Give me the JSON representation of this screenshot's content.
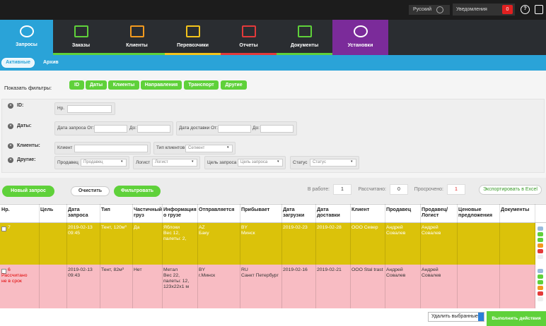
{
  "topbar": {
    "language": "Русский",
    "notifications": "Уведомления",
    "notifications_count": 0
  },
  "nav": {
    "tabs": [
      "Запросы",
      "Заказы",
      "Клиенты",
      "Перевозчики",
      "Отчеты",
      "Документы",
      "Установки"
    ]
  },
  "subnav": {
    "tabs": [
      "Активные",
      "Архив"
    ]
  },
  "filters": {
    "label": "Показать фильтры:",
    "buttons": [
      "ID",
      "Даты",
      "Клиенты",
      "Направления",
      "Транспорт",
      "Другие"
    ]
  },
  "filter_panel": {
    "id": {
      "label": "ID:",
      "field": "Нр."
    },
    "dates": {
      "label": "Даты:",
      "request_from": "Дата запроса От:",
      "request_to": "До:",
      "delivery_from": "Дата доставки От:",
      "delivery_to": "До:"
    },
    "clients": {
      "label": "Клиенты:",
      "client": "Клиент",
      "client_type": "Тип клиентов",
      "segment": "Сегмент"
    },
    "other": {
      "label": "Другие:",
      "fields": [
        {
          "label": "Продавец",
          "placeholder": "Продавец"
        },
        {
          "label": "Логист",
          "placeholder": "Логист"
        },
        {
          "label": "Цель запроса",
          "placeholder": "Цель запроса"
        },
        {
          "label": "Статус",
          "placeholder": "Статус"
        }
      ]
    }
  },
  "actions": {
    "new_request": "Новый запрос",
    "clear": "Очистить",
    "filter": "Фильтровать",
    "in_work_label": "В работе:",
    "in_work": 1,
    "calculated_label": "Рассчитано:",
    "calculated": 0,
    "overdue_label": "Просрочено:",
    "overdue": 1,
    "export": "Экспортировать в Excel"
  },
  "table": {
    "columns": [
      "Нр.",
      "Цель",
      "Дата запроса",
      "Тип",
      "Частичный груз",
      "Информация о грузе",
      "Отправляется",
      "Прибывает",
      "Дата загрузки",
      "Дата доставки",
      "Клиент",
      "Продавец",
      "Продавец/ Логист",
      "Ценовые предложения",
      "Документы"
    ],
    "rows": [
      {
        "number": 7,
        "cells": [
          null,
          "2019-02-13\n09:45",
          "Тент, 120м³",
          "Да",
          "Яблоки\nВес 12,\nпалеты: 2,",
          "AZ\nБаку",
          "BY\nМинск",
          "2019-02-23",
          "2019-02-28",
          "ООО Север",
          "Андрей\nСовалев",
          "Андрей\nСовалев",
          null,
          null
        ]
      },
      {
        "number": 6,
        "status": "Рассчитано\nне в срок",
        "cells": [
          null,
          "2019-02-13\n09:43",
          "Тент, 82м³",
          "Нет",
          "Метал\nВес 22,\nпалеты: 12,\n123x22x1 м",
          "BY\nг.Минск",
          "RU\nСанкт Петербург",
          "2019-02-16",
          "2019-02-21",
          "ООО Stal trast",
          "Андрей\nСовалев",
          "Андрей\nСовалев",
          null,
          null
        ]
      }
    ]
  },
  "footer": {
    "bulk_action": "Удалить выбранные",
    "execute": "Выполнить действия"
  }
}
